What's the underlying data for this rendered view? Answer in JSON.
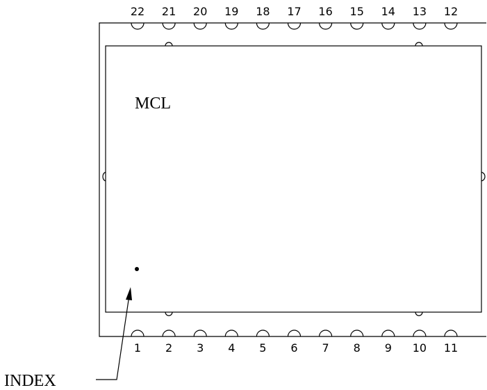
{
  "component": {
    "marking": "MCL",
    "index_label": "INDEX"
  },
  "pins": {
    "top": [
      "22",
      "21",
      "20",
      "19",
      "18",
      "17",
      "16",
      "15",
      "14",
      "13",
      "12"
    ],
    "bottom": [
      "1",
      "2",
      "3",
      "4",
      "5",
      "6",
      "7",
      "8",
      "9",
      "10",
      "11"
    ]
  },
  "colors": {
    "line": "#000000",
    "background": "#ffffff"
  }
}
